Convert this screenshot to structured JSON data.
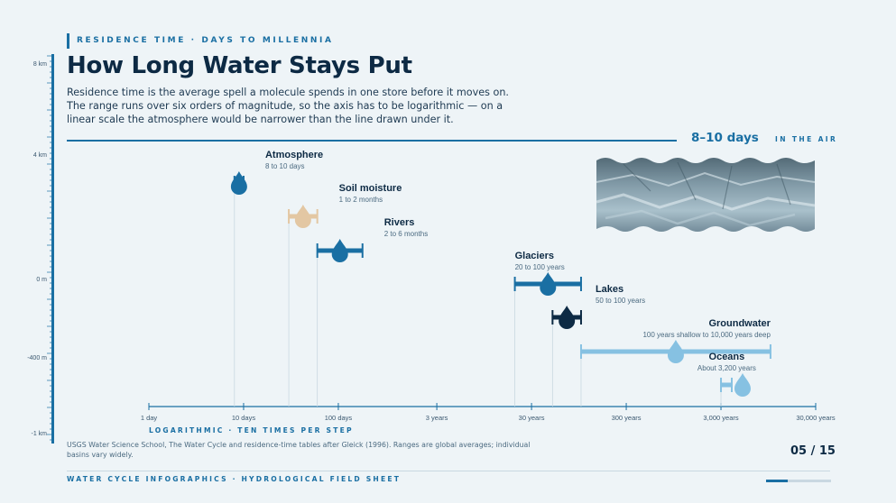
{
  "kicker": "RESIDENCE TIME · DAYS TO MILLENNIA",
  "title": "How Long Water Stays Put",
  "lede": "Residence time is the average spell a molecule spends in one store before it moves on. The range runs over six orders of magnitude, so the axis has to be logarithmic — on a linear scale the atmosphere would be narrower than the line drawn under it.",
  "highlight": {
    "value": "8–10 days",
    "label": "IN THE AIR"
  },
  "ruler": {
    "labels": [
      "8 km",
      "4 km",
      "0 m",
      "-400 m",
      "-1 km"
    ]
  },
  "axis_caption": "LOGARITHMIC · TEN TIMES PER STEP",
  "source": "USGS Water Science School, The Water Cycle and residence-time tables after Gleick (1996). Ranges are global averages; individual basins vary widely.",
  "page_number": "05 / 15",
  "footer": "WATER CYCLE INFOGRAPHICS · HYDROLOGICAL FIELD SHEET",
  "progress_fraction": 0.33,
  "colors": {
    "accent": "#1a6fa3",
    "navy": "#0d2a44",
    "light": "#86c1e2",
    "sand": "#e3c7a3"
  },
  "chart_data": {
    "type": "range",
    "x_scale": "log",
    "x_unit": "days",
    "xlim_days": [
      1,
      10957500
    ],
    "ticks": [
      {
        "value_days": 1,
        "label": "1 day"
      },
      {
        "value_days": 10,
        "label": "10 days"
      },
      {
        "value_days": 100,
        "label": "100 days"
      },
      {
        "value_days": 1095.75,
        "label": "3 years"
      },
      {
        "value_days": 10957.5,
        "label": "30 years"
      },
      {
        "value_days": 109575,
        "label": "300 years"
      },
      {
        "value_days": 1095750,
        "label": "3,000 years"
      },
      {
        "value_days": 10957500,
        "label": "30,000 years"
      }
    ],
    "series": [
      {
        "name": "Atmosphere",
        "range_label": "8 to 10 days",
        "min_days": 8,
        "max_days": 10,
        "color": "#1a6fa3"
      },
      {
        "name": "Soil moisture",
        "range_label": "1 to 2 months",
        "min_days": 30,
        "max_days": 60,
        "color": "#e3c7a3"
      },
      {
        "name": "Rivers",
        "range_label": "2 to 6 months",
        "min_days": 60,
        "max_days": 180,
        "color": "#1a6fa3"
      },
      {
        "name": "Glaciers",
        "range_label": "20 to 100 years",
        "min_days": 7305,
        "max_days": 36525,
        "color": "#1a6fa3"
      },
      {
        "name": "Lakes",
        "range_label": "50 to 100 years",
        "min_days": 18262,
        "max_days": 36525,
        "color": "#0d2a44"
      },
      {
        "name": "Groundwater",
        "range_label": "100 years shallow to 10,000 years deep",
        "min_days": 36525,
        "max_days": 3652500,
        "color": "#86c1e2"
      },
      {
        "name": "Oceans",
        "range_label": "About 3,200 years",
        "min_days": 1095750,
        "max_days": 1424475,
        "color": "#86c1e2"
      }
    ]
  }
}
